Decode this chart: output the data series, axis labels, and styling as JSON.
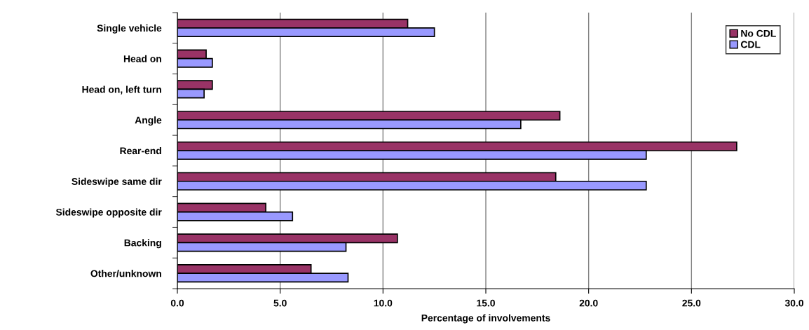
{
  "chart_data": {
    "type": "bar",
    "orientation": "horizontal",
    "xlabel": "Percentage of involvements",
    "categories": [
      "Single vehicle",
      "Head on",
      "Head on, left turn",
      "Angle",
      "Rear-end",
      "Sideswipe same dir",
      "Sideswipe opposite dir",
      "Backing",
      "Other/unknown"
    ],
    "series": [
      {
        "name": "No CDL",
        "color": "#993366",
        "values": [
          11.2,
          1.4,
          1.7,
          18.6,
          27.2,
          18.4,
          4.3,
          10.7,
          6.5
        ]
      },
      {
        "name": "CDL",
        "color": "#9999ff",
        "values": [
          12.5,
          1.7,
          1.3,
          16.7,
          22.8,
          22.8,
          5.6,
          8.2,
          8.3
        ]
      }
    ],
    "xlim": [
      0,
      30
    ],
    "xticks": [
      {
        "value": 0,
        "label": "0.0"
      },
      {
        "value": 5,
        "label": "5.0"
      },
      {
        "value": 10,
        "label": "10.0"
      },
      {
        "value": 15,
        "label": "15.0"
      },
      {
        "value": 20,
        "label": "20.0"
      },
      {
        "value": 25,
        "label": "25.0"
      },
      {
        "value": 30,
        "label": "30.0"
      }
    ],
    "grid": "x",
    "legend": "top right"
  }
}
